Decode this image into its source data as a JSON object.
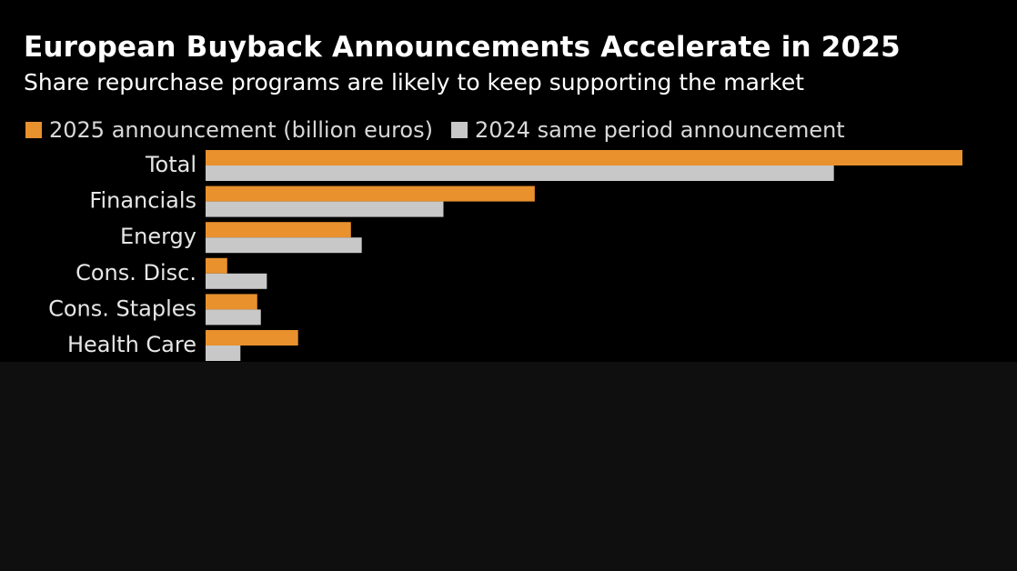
{
  "chart_data": {
    "type": "bar",
    "orientation": "horizontal",
    "title": "European Buyback Announcements Accelerate in 2025",
    "subtitle": "Share repurchase programs are likely to keep supporting the market",
    "categories": [
      "Total",
      "Financials",
      "Energy",
      "Cons. Disc.",
      "Cons. Staples",
      "Health Care"
    ],
    "series": [
      {
        "name": "2025 announcement (billion euros)",
        "color": "#e8912d",
        "values": [
          63.0,
          27.4,
          12.1,
          1.8,
          4.3,
          7.7
        ]
      },
      {
        "name": "2024 same period announcement",
        "color": "#c8c8c8",
        "values": [
          52.3,
          19.8,
          13.0,
          5.1,
          4.6,
          2.9
        ]
      }
    ],
    "xlim": [
      0,
      63
    ],
    "grid": false,
    "legend_position": "top-left"
  }
}
